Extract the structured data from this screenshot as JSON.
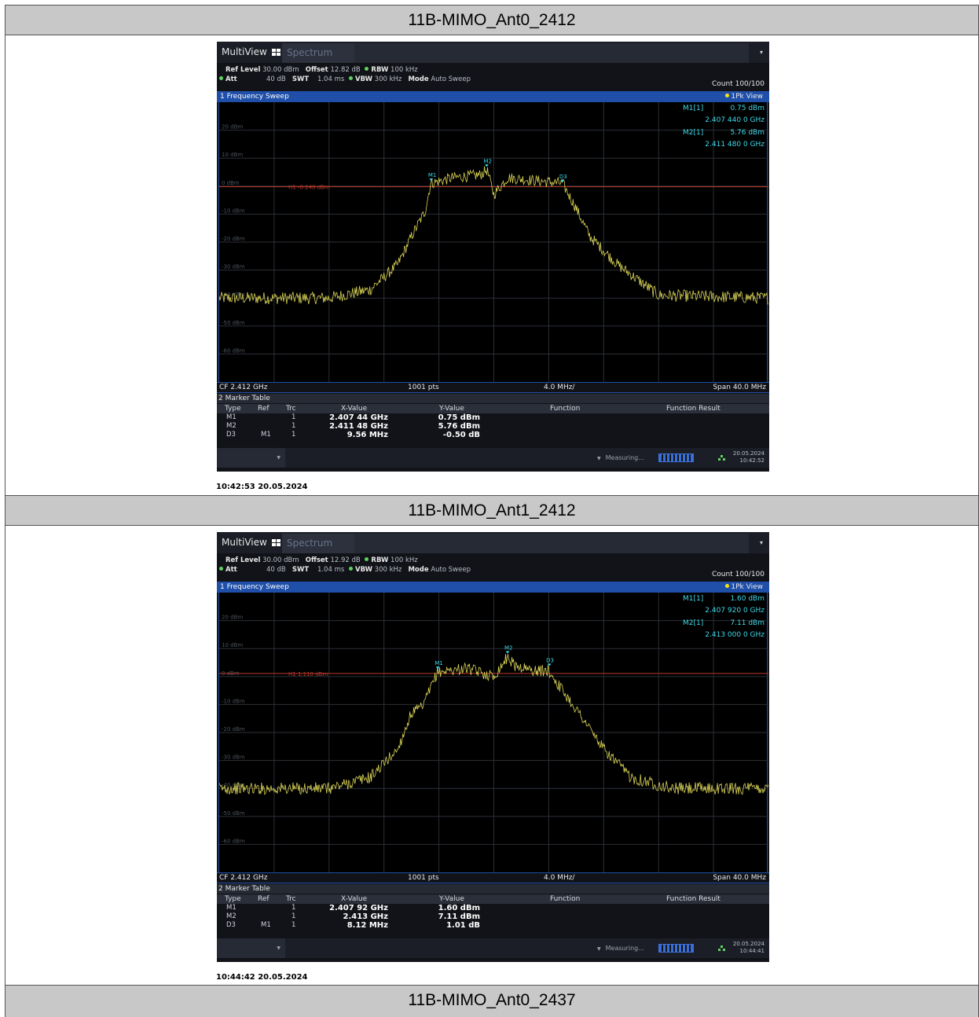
{
  "sections": [
    {
      "title": "11B-MIMO_Ant0_2412",
      "timestamp": "10:42:53  20.05.2024",
      "analyzer": {
        "tab_multiview": "MultiView",
        "tab_spectrum": "Spectrum",
        "ref_level_label": "Ref Level",
        "ref_level_value": "30.00 dBm",
        "offset_label": "Offset",
        "offset_value": "12.82 dB",
        "rbw_label": "RBW",
        "rbw_value": "100 kHz",
        "att_label": "Att",
        "att_value": "40 dB",
        "swt_label": "SWT",
        "swt_value": "1.04 ms",
        "vbw_label": "VBW",
        "vbw_value": "300 kHz",
        "mode_label": "Mode",
        "mode_value": "Auto Sweep",
        "count": "Count 100/100",
        "sweep_title": "1 Frequency Sweep",
        "view_label": "1Pk View",
        "marker_readout": [
          {
            "name": "M1[1]",
            "value": "0.75 dBm",
            "freq": "2.407 440 0 GHz"
          },
          {
            "name": "M2[1]",
            "value": "5.76 dBm",
            "freq": "2.411 480 0 GHz"
          }
        ],
        "y_labels": [
          "20 dBm",
          "10 dBm",
          "0 dBm",
          "-10 dBm",
          "-20 dBm",
          "-30 dBm",
          "-40 dBm",
          "-50 dBm",
          "-60 dBm"
        ],
        "h1_label": "H1 -0.240 dBm",
        "h1_level_dbm": -0.24,
        "markers_on_plot": [
          {
            "label": "M1",
            "freq_ghz": 2.40744,
            "level_dbm": 0.75
          },
          {
            "label": "M2",
            "freq_ghz": 2.41148,
            "level_dbm": 5.76
          },
          {
            "label": "D3",
            "freq_ghz": 2.417,
            "level_dbm": 0.25
          }
        ],
        "cf": "CF 2.412 GHz",
        "pts": "1001 pts",
        "div": "4.0 MHz/",
        "span": "Span 40.0 MHz",
        "marker_table_title": "2 Marker Table",
        "table_headers": [
          "Type",
          "Ref",
          "Trc",
          "X-Value",
          "Y-Value",
          "Function",
          "Function Result"
        ],
        "table_rows": [
          {
            "type": "M1",
            "ref": "",
            "trc": "1",
            "x": "2.407 44 GHz",
            "y": "0.75 dBm"
          },
          {
            "type": "M2",
            "ref": "",
            "trc": "1",
            "x": "2.411 48 GHz",
            "y": "5.76 dBm"
          },
          {
            "type": "D3",
            "ref": "M1",
            "trc": "1",
            "x": "9.56 MHz",
            "y": "-0.50 dB"
          }
        ],
        "status_measuring": "Measuring...",
        "status_date": "20.05.2024",
        "status_time": "10:42:52"
      },
      "chart_data": {
        "type": "line",
        "xlabel": "",
        "ylabel": "",
        "xlim_ghz": [
          2.392,
          2.432
        ],
        "ylim_dbm": [
          -70,
          30
        ],
        "series": [
          {
            "x_ghz": [
              2.392,
              2.4,
              2.403,
              2.405,
              2.406,
              2.407,
              2.4074,
              2.409,
              2.411,
              2.4115,
              2.412,
              2.413,
              2.415,
              2.417,
              2.418,
              2.419,
              2.421,
              2.424,
              2.432
            ],
            "y_dbm": [
              -40,
              -40,
              -37,
              -28,
              -18,
              -9,
              1,
              3,
              4,
              5.8,
              -3,
              3,
              2,
              1,
              -8,
              -18,
              -28,
              -39,
              -40
            ]
          }
        ]
      }
    },
    {
      "title": "11B-MIMO_Ant1_2412",
      "timestamp": "10:44:42  20.05.2024",
      "analyzer": {
        "tab_multiview": "MultiView",
        "tab_spectrum": "Spectrum",
        "ref_level_label": "Ref Level",
        "ref_level_value": "30.00 dBm",
        "offset_label": "Offset",
        "offset_value": "12.92 dB",
        "rbw_label": "RBW",
        "rbw_value": "100 kHz",
        "att_label": "Att",
        "att_value": "40 dB",
        "swt_label": "SWT",
        "swt_value": "1.04 ms",
        "vbw_label": "VBW",
        "vbw_value": "300 kHz",
        "mode_label": "Mode",
        "mode_value": "Auto Sweep",
        "count": "Count 100/100",
        "sweep_title": "1 Frequency Sweep",
        "view_label": "1Pk View",
        "marker_readout": [
          {
            "name": "M1[1]",
            "value": "1.60 dBm",
            "freq": "2.407 920 0 GHz"
          },
          {
            "name": "M2[1]",
            "value": "7.11 dBm",
            "freq": "2.413 000 0 GHz"
          }
        ],
        "y_labels": [
          "20 dBm",
          "10 dBm",
          "0 dBm",
          "-10 dBm",
          "-20 dBm",
          "-30 dBm",
          "-40 dBm",
          "-50 dBm",
          "-60 dBm"
        ],
        "h1_label": "H1 1.110 dBm",
        "h1_level_dbm": 1.11,
        "markers_on_plot": [
          {
            "label": "M1",
            "freq_ghz": 2.40792,
            "level_dbm": 1.6
          },
          {
            "label": "M2",
            "freq_ghz": 2.413,
            "level_dbm": 7.11
          },
          {
            "label": "D3",
            "freq_ghz": 2.41604,
            "level_dbm": 2.61
          }
        ],
        "cf": "CF 2.412 GHz",
        "pts": "1001 pts",
        "div": "4.0 MHz/",
        "span": "Span 40.0 MHz",
        "marker_table_title": "2 Marker Table",
        "table_headers": [
          "Type",
          "Ref",
          "Trc",
          "X-Value",
          "Y-Value",
          "Function",
          "Function Result"
        ],
        "table_rows": [
          {
            "type": "M1",
            "ref": "",
            "trc": "1",
            "x": "2.407 92 GHz",
            "y": "1.60 dBm"
          },
          {
            "type": "M2",
            "ref": "",
            "trc": "1",
            "x": "2.413 GHz",
            "y": "7.11 dBm"
          },
          {
            "type": "D3",
            "ref": "M1",
            "trc": "1",
            "x": "8.12 MHz",
            "y": "1.01 dB"
          }
        ],
        "status_measuring": "Measuring...",
        "status_date": "20.05.2024",
        "status_time": "10:44:41"
      },
      "chart_data": {
        "type": "line",
        "xlabel": "",
        "ylabel": "",
        "xlim_ghz": [
          2.392,
          2.432
        ],
        "ylim_dbm": [
          -70,
          30
        ],
        "series": [
          {
            "x_ghz": [
              2.392,
              2.4,
              2.403,
              2.405,
              2.406,
              2.4068,
              2.4079,
              2.41,
              2.412,
              2.413,
              2.4135,
              2.415,
              2.416,
              2.417,
              2.4185,
              2.42,
              2.422,
              2.425,
              2.432
            ],
            "y_dbm": [
              -40,
              -40,
              -36,
              -26,
              -13,
              -11,
              1.6,
              3,
              0,
              7.1,
              4,
              2,
              2,
              -5,
              -15,
              -26,
              -36,
              -40,
              -40
            ]
          }
        ]
      }
    }
  ],
  "next_section_title": "11B-MIMO_Ant0_2437",
  "colors": {
    "trace": "#d9d256",
    "h1_line": "#c0392b",
    "marker": "#3fd8e8",
    "sweep_bar": "#1f4fa8",
    "grid": "#2b2f36"
  }
}
